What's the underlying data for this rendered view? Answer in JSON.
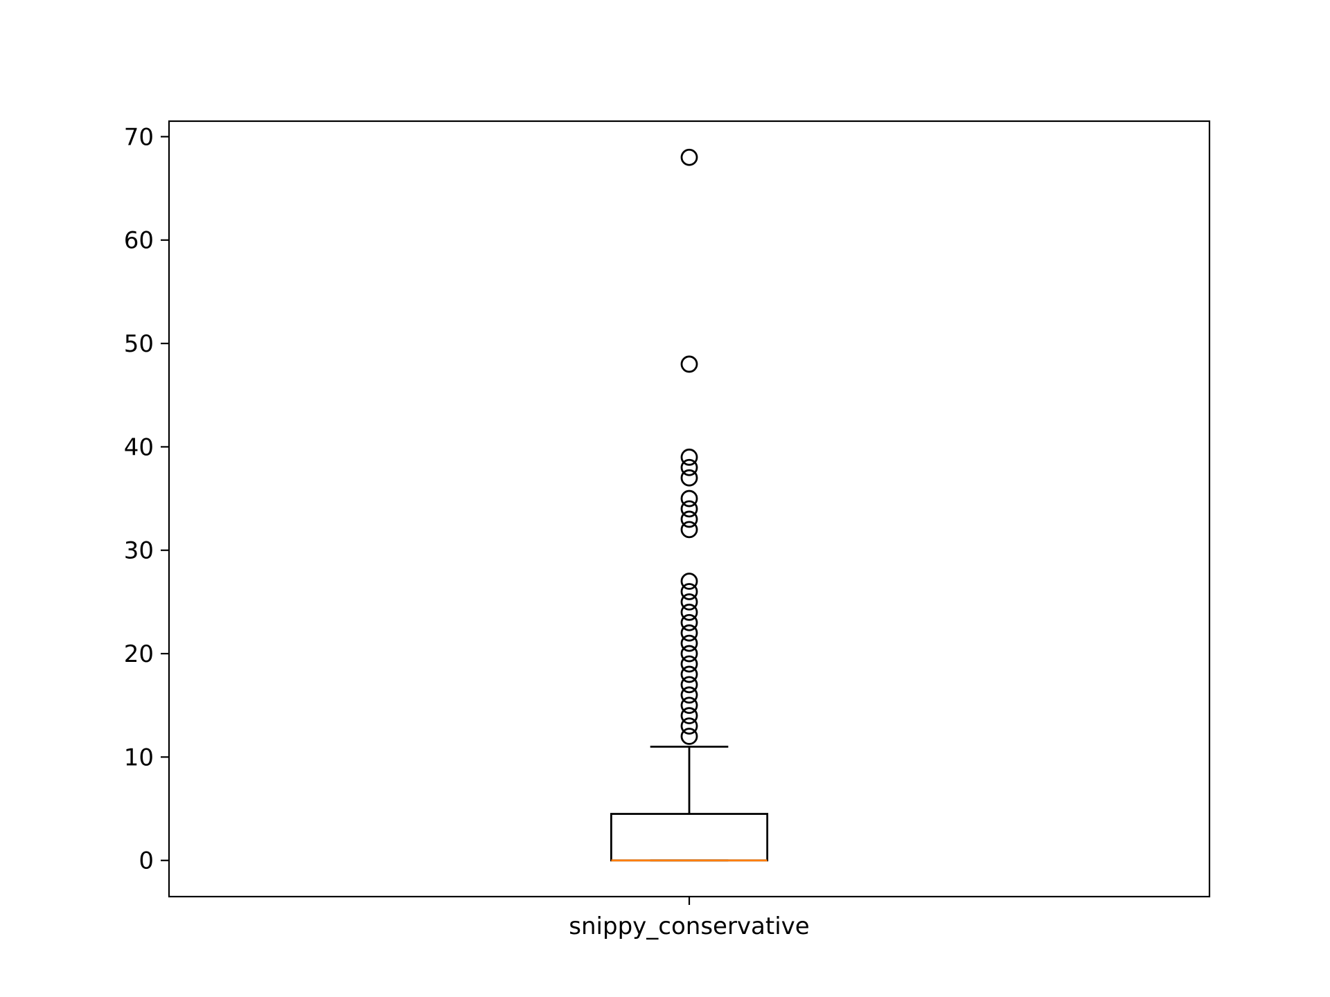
{
  "chart_data": {
    "type": "box",
    "categories": [
      "snippy_conservative"
    ],
    "ylim": [
      -3.5,
      71.5
    ],
    "yticks": [
      0,
      10,
      20,
      30,
      40,
      50,
      60,
      70
    ],
    "grid": false,
    "boxes": [
      {
        "label": "snippy_conservative",
        "whisker_low": 0,
        "q1": 0,
        "median": 0,
        "q3": 4.5,
        "whisker_high": 11,
        "outliers": [
          12,
          13,
          14,
          15,
          16,
          17,
          18,
          19,
          20,
          21,
          22,
          23,
          24,
          25,
          26,
          27,
          32,
          33,
          34,
          35,
          37,
          38,
          39,
          48,
          68
        ]
      }
    ],
    "colors": {
      "box": "#000000",
      "median": "#ff7f0e",
      "background": "#ffffff"
    }
  }
}
